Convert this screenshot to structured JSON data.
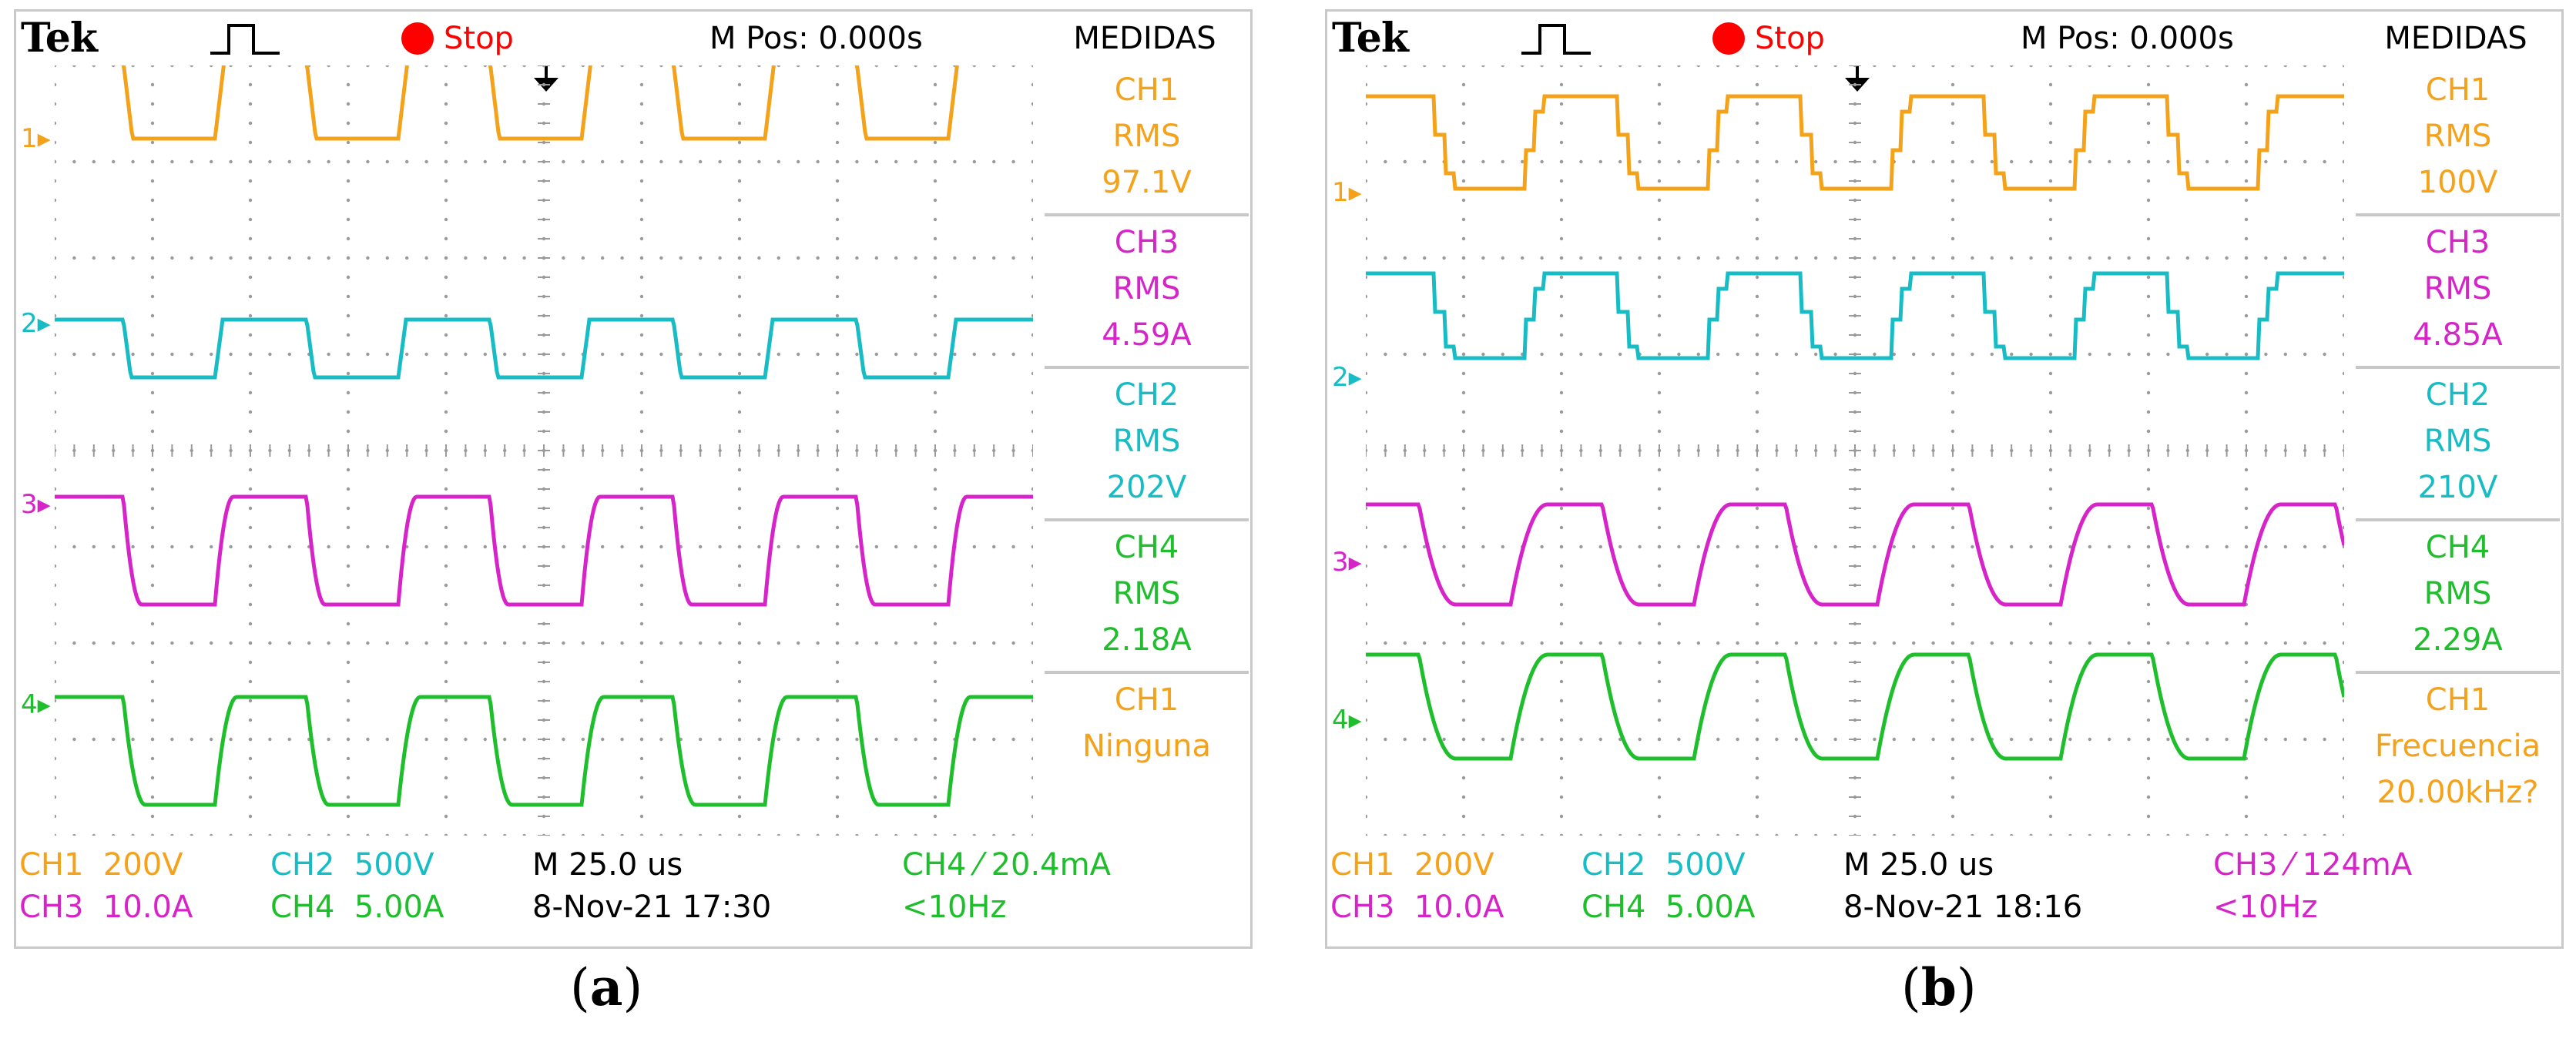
{
  "colors": {
    "ch1": "#f5a21b",
    "ch2": "#18bcc4",
    "ch3": "#d624c8",
    "ch4": "#1fbe2c",
    "stop": "#ff0000",
    "grid": "#9a9a9a"
  },
  "panels": [
    {
      "id": "a",
      "brand": "Tek",
      "status": "Stop",
      "mpos": "M Pos: 0.000s",
      "meas_title": "MEDIDAS",
      "measurements": [
        {
          "ch": "CH1",
          "kind": "RMS",
          "value": "97.1V",
          "color": "ch1"
        },
        {
          "ch": "CH3",
          "kind": "RMS",
          "value": "4.59A",
          "color": "ch3"
        },
        {
          "ch": "CH2",
          "kind": "RMS",
          "value": "202V",
          "color": "ch2"
        },
        {
          "ch": "CH4",
          "kind": "RMS",
          "value": "2.18A",
          "color": "ch4"
        },
        {
          "ch": "CH1",
          "kind": "Ninguna",
          "value": "",
          "color": "ch1"
        }
      ],
      "footer": {
        "ch1": "CH1  200V",
        "ch2": "CH2  500V",
        "ch3": "CH3  10.0A",
        "ch4": "CH4  5.00A",
        "timebase": "M 25.0 us",
        "date": "8-Nov-21 17:30",
        "trigger": "CH4 ⁄ 20.4mA",
        "trigger_freq": "<10Hz",
        "trigger_color": "ch4"
      },
      "caption_label": "a"
    },
    {
      "id": "b",
      "brand": "Tek",
      "status": "Stop",
      "mpos": "M Pos: 0.000s",
      "meas_title": "MEDIDAS",
      "measurements": [
        {
          "ch": "CH1",
          "kind": "RMS",
          "value": "100V",
          "color": "ch1"
        },
        {
          "ch": "CH3",
          "kind": "RMS",
          "value": "4.85A",
          "color": "ch3"
        },
        {
          "ch": "CH2",
          "kind": "RMS",
          "value": "210V",
          "color": "ch2"
        },
        {
          "ch": "CH4",
          "kind": "RMS",
          "value": "2.29A",
          "color": "ch4"
        },
        {
          "ch": "CH1",
          "kind": "Frecuencia",
          "value": "20.00kHz?",
          "color": "ch1"
        }
      ],
      "footer": {
        "ch1": "CH1  200V",
        "ch2": "CH2  500V",
        "ch3": "CH3  10.0A",
        "ch4": "CH4  5.00A",
        "timebase": "M 25.0 us",
        "date": "8-Nov-21 18:16",
        "trigger": "CH3 ⁄ 124mA",
        "trigger_freq": "<10Hz",
        "trigger_color": "ch3"
      },
      "caption_label": "b"
    }
  ],
  "chart_data": [
    {
      "type": "line",
      "title": "(a)",
      "x_unit": "us",
      "x_per_div": 25.0,
      "divisions": 10,
      "x_range": [
        -125,
        125
      ],
      "frequency_kHz": 20.0,
      "series": [
        {
          "name": "CH1",
          "quantity": "voltage",
          "scale_per_div": "200V",
          "shape": "square",
          "rms": "97.1V"
        },
        {
          "name": "CH2",
          "quantity": "voltage",
          "scale_per_div": "500V",
          "shape": "square",
          "rms": "202V"
        },
        {
          "name": "CH3",
          "quantity": "current",
          "scale_per_div": "10.0A",
          "shape": "trapezoidal",
          "rms": "4.59A"
        },
        {
          "name": "CH4",
          "quantity": "current",
          "scale_per_div": "5.00A",
          "shape": "trapezoidal",
          "rms": "2.18A"
        }
      ]
    },
    {
      "type": "line",
      "title": "(b)",
      "x_unit": "us",
      "x_per_div": 25.0,
      "divisions": 10,
      "x_range": [
        -125,
        125
      ],
      "frequency_kHz": 20.0,
      "series": [
        {
          "name": "CH1",
          "quantity": "voltage",
          "scale_per_div": "200V",
          "shape": "stepped multilevel",
          "rms": "100V"
        },
        {
          "name": "CH2",
          "quantity": "voltage",
          "scale_per_div": "500V",
          "shape": "stepped multilevel",
          "rms": "210V"
        },
        {
          "name": "CH3",
          "quantity": "current",
          "scale_per_div": "10.0A",
          "shape": "trapezoidal",
          "rms": "4.85A"
        },
        {
          "name": "CH4",
          "quantity": "current",
          "scale_per_div": "5.00A",
          "shape": "trapezoidal",
          "rms": "2.29A"
        }
      ]
    }
  ]
}
